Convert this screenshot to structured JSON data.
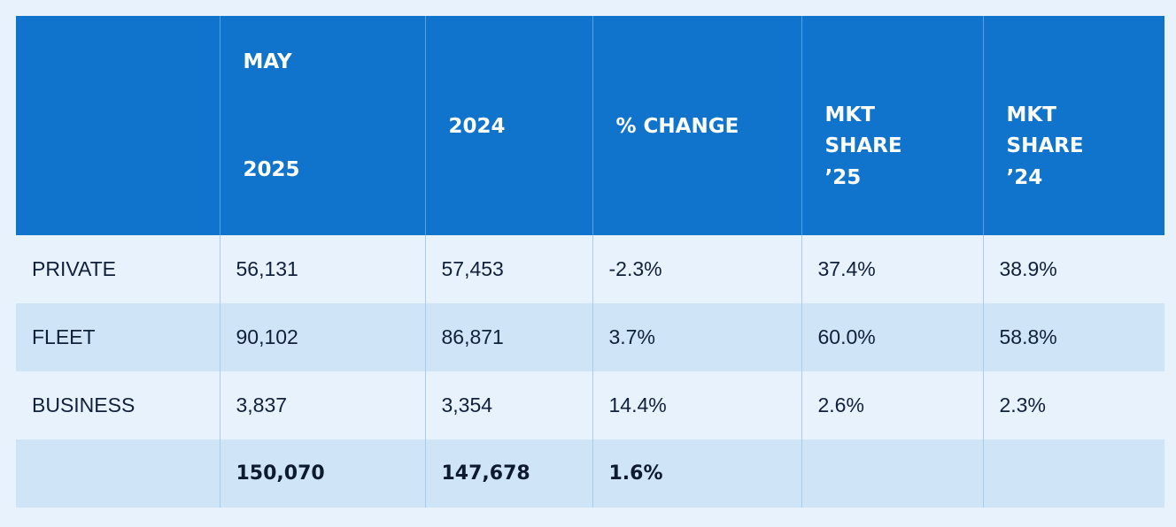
{
  "header": {
    "month": "MAY",
    "columns": [
      "",
      "2025",
      "2024",
      "% CHANGE",
      "MKT SHARE ’25",
      "MKT SHARE ’24"
    ],
    "mkt_share_25_lines": [
      "MKT",
      "SHARE",
      "’25"
    ],
    "mkt_share_24_lines": [
      "MKT",
      "SHARE",
      "’24"
    ]
  },
  "rows": [
    {
      "label": "PRIVATE",
      "y2025": "56,131",
      "y2024": "57,453",
      "change": "-2.3%",
      "share25": "37.4%",
      "share24": "38.9%"
    },
    {
      "label": "FLEET",
      "y2025": "90,102",
      "y2024": "86,871",
      "change": "3.7%",
      "share25": "60.0%",
      "share24": "58.8%"
    },
    {
      "label": "BUSINESS",
      "y2025": "3,837",
      "y2024": "3,354",
      "change": "14.4%",
      "share25": "2.6%",
      "share24": "2.3%"
    }
  ],
  "total": {
    "label": "",
    "y2025": "150,070",
    "y2024": "147,678",
    "change": "1.6%",
    "share25": "",
    "share24": ""
  },
  "colors": {
    "header_bg": "#1174cc",
    "row_light": "#e8f2fd",
    "row_dark": "#d0e4f7",
    "text": "#10203a"
  }
}
